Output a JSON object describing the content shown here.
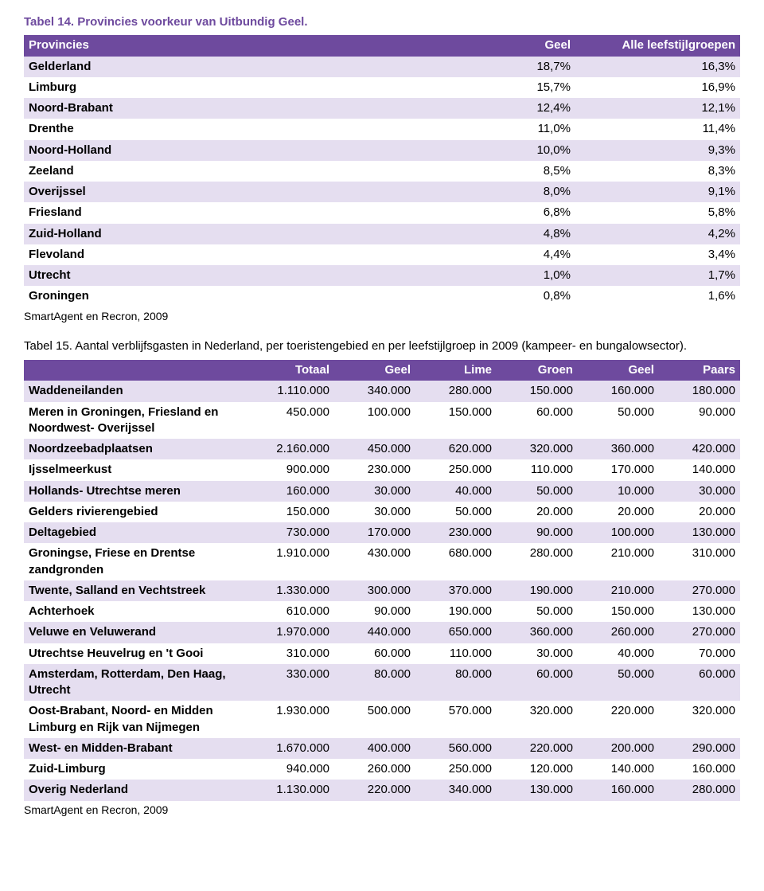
{
  "table1": {
    "caption": "Tabel 14. Provincies voorkeur van Uitbundig Geel.",
    "source": "SmartAgent en Recron, 2009",
    "headers": [
      "Provincies",
      "Geel",
      "Alle leefstijlgroepen"
    ],
    "rows": [
      [
        "Gelderland",
        "18,7%",
        "16,3%"
      ],
      [
        "Limburg",
        "15,7%",
        "16,9%"
      ],
      [
        "Noord-Brabant",
        "12,4%",
        "12,1%"
      ],
      [
        "Drenthe",
        "11,0%",
        "11,4%"
      ],
      [
        "Noord-Holland",
        "10,0%",
        "9,3%"
      ],
      [
        "Zeeland",
        "8,5%",
        "8,3%"
      ],
      [
        "Overijssel",
        "8,0%",
        "9,1%"
      ],
      [
        "Friesland",
        "6,8%",
        "5,8%"
      ],
      [
        "Zuid-Holland",
        "4,8%",
        "4,2%"
      ],
      [
        "Flevoland",
        "4,4%",
        "3,4%"
      ],
      [
        "Utrecht",
        "1,0%",
        "1,7%"
      ],
      [
        "Groningen",
        "0,8%",
        "1,6%"
      ]
    ]
  },
  "table2": {
    "caption": "Tabel 15. Aantal verblijfsgasten in Nederland, per toeristengebied en per leefstijlgroep in 2009 (kampeer- en bungalowsector).",
    "source": "SmartAgent en Recron, 2009",
    "headers": [
      "",
      "Totaal",
      "Geel",
      "Lime",
      "Groen",
      "Geel",
      "Paars"
    ],
    "rows": [
      [
        "Waddeneilanden",
        "1.110.000",
        "340.000",
        "280.000",
        "150.000",
        "160.000",
        "180.000"
      ],
      [
        "Meren in Groningen, Friesland en Noordwest- Overijssel",
        "450.000",
        "100.000",
        "150.000",
        "60.000",
        "50.000",
        "90.000"
      ],
      [
        "Noordzeebadplaatsen",
        "2.160.000",
        "450.000",
        "620.000",
        "320.000",
        "360.000",
        "420.000"
      ],
      [
        "Ijsselmeerkust",
        "900.000",
        "230.000",
        "250.000",
        "110.000",
        "170.000",
        "140.000"
      ],
      [
        "Hollands- Utrechtse meren",
        "160.000",
        "30.000",
        "40.000",
        "50.000",
        "10.000",
        "30.000"
      ],
      [
        "Gelders rivierengebied",
        "150.000",
        "30.000",
        "50.000",
        "20.000",
        "20.000",
        "20.000"
      ],
      [
        "Deltagebied",
        "730.000",
        "170.000",
        "230.000",
        "90.000",
        "100.000",
        "130.000"
      ],
      [
        "Groningse, Friese en Drentse zandgronden",
        "1.910.000",
        "430.000",
        "680.000",
        "280.000",
        "210.000",
        "310.000"
      ],
      [
        "Twente, Salland en Vechtstreek",
        "1.330.000",
        "300.000",
        "370.000",
        "190.000",
        "210.000",
        "270.000"
      ],
      [
        "Achterhoek",
        "610.000",
        "90.000",
        "190.000",
        "50.000",
        "150.000",
        "130.000"
      ],
      [
        "Veluwe en Veluwerand",
        "1.970.000",
        "440.000",
        "650.000",
        "360.000",
        "260.000",
        "270.000"
      ],
      [
        "Utrechtse Heuvelrug en 't Gooi",
        "310.000",
        "60.000",
        "110.000",
        "30.000",
        "40.000",
        "70.000"
      ],
      [
        "Amsterdam, Rotterdam, Den Haag, Utrecht",
        "330.000",
        "80.000",
        "80.000",
        "60.000",
        "50.000",
        "60.000"
      ],
      [
        "Oost-Brabant, Noord- en Midden Limburg en Rijk van Nijmegen",
        "1.930.000",
        "500.000",
        "570.000",
        "320.000",
        "220.000",
        "320.000"
      ],
      [
        "West- en Midden-Brabant",
        "1.670.000",
        "400.000",
        "560.000",
        "220.000",
        "200.000",
        "290.000"
      ],
      [
        "Zuid-Limburg",
        "940.000",
        "260.000",
        "250.000",
        "120.000",
        "140.000",
        "160.000"
      ],
      [
        "Overig Nederland",
        "1.130.000",
        "220.000",
        "340.000",
        "130.000",
        "160.000",
        "280.000"
      ]
    ]
  },
  "colors": {
    "header_bg": "#6e4a9e",
    "header_text": "#ffffff",
    "row_odd": "#e5def0",
    "row_even": "#ffffff",
    "caption": "#6e4a9e"
  }
}
